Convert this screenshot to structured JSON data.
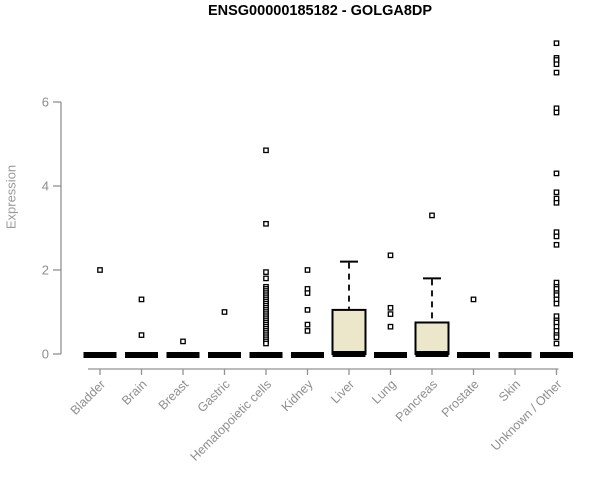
{
  "chart_data": {
    "type": "boxplot",
    "title": "ENSG00000185182 - GOLGA8DP",
    "ylabel": "Expression",
    "xlabel": "",
    "ylim": [
      0,
      7.5
    ],
    "yticks": [
      0,
      2,
      4,
      6
    ],
    "grid": false,
    "legend": "none",
    "categories": [
      "Bladder",
      "Brain",
      "Breast",
      "Gastric",
      "Hematopoietic cells",
      "Kidney",
      "Liver",
      "Lung",
      "Pancreas",
      "Prostate",
      "Skin",
      "Unknown / Other"
    ],
    "boxes": [
      {
        "category": "Bladder",
        "q1": 0,
        "median": 0,
        "q3": 0,
        "whisker_low": 0,
        "whisker_high": 0
      },
      {
        "category": "Brain",
        "q1": 0,
        "median": 0,
        "q3": 0,
        "whisker_low": 0,
        "whisker_high": 0
      },
      {
        "category": "Breast",
        "q1": 0,
        "median": 0,
        "q3": 0,
        "whisker_low": 0,
        "whisker_high": 0
      },
      {
        "category": "Gastric",
        "q1": 0,
        "median": 0,
        "q3": 0,
        "whisker_low": 0,
        "whisker_high": 0
      },
      {
        "category": "Hematopoietic cells",
        "q1": 0,
        "median": 0,
        "q3": 0,
        "whisker_low": 0,
        "whisker_high": 0
      },
      {
        "category": "Kidney",
        "q1": 0,
        "median": 0,
        "q3": 0,
        "whisker_low": 0,
        "whisker_high": 0
      },
      {
        "category": "Liver",
        "q1": 0,
        "median": 0,
        "q3": 1.05,
        "whisker_low": 0,
        "whisker_high": 2.2
      },
      {
        "category": "Lung",
        "q1": 0,
        "median": 0,
        "q3": 0,
        "whisker_low": 0,
        "whisker_high": 0
      },
      {
        "category": "Pancreas",
        "q1": 0,
        "median": 0,
        "q3": 0.75,
        "whisker_low": 0,
        "whisker_high": 1.8
      },
      {
        "category": "Prostate",
        "q1": 0,
        "median": 0,
        "q3": 0,
        "whisker_low": 0,
        "whisker_high": 0
      },
      {
        "category": "Skin",
        "q1": 0,
        "median": 0,
        "q3": 0,
        "whisker_low": 0,
        "whisker_high": 0
      },
      {
        "category": "Unknown / Other",
        "q1": 0,
        "median": 0,
        "q3": 0,
        "whisker_low": 0,
        "whisker_high": 0
      }
    ],
    "outliers": [
      [
        2.0
      ],
      [
        1.3,
        0.45
      ],
      [
        0.3
      ],
      [
        1.0
      ],
      [
        4.85,
        3.1,
        1.95,
        1.8,
        1.6,
        1.55,
        1.5,
        1.45,
        1.4,
        1.35,
        1.3,
        1.25,
        1.2,
        1.15,
        1.1,
        1.05,
        1.0,
        0.95,
        0.9,
        0.85,
        0.8,
        0.75,
        0.7,
        0.65,
        0.6,
        0.55,
        0.5,
        0.45,
        0.4,
        0.35,
        0.3,
        0.25
      ],
      [
        2.0,
        1.55,
        1.45,
        1.05,
        0.7,
        0.55
      ],
      [],
      [
        2.35,
        1.1,
        0.95,
        0.65
      ],
      [
        3.3
      ],
      [
        1.3
      ],
      [],
      [
        7.4,
        7.05,
        7.0,
        6.9,
        6.7,
        5.85,
        5.75,
        4.3,
        3.85,
        3.7,
        3.6,
        2.9,
        2.8,
        2.6,
        1.7,
        1.6,
        1.55,
        1.45,
        1.4,
        1.3,
        1.2,
        0.9,
        0.8,
        0.75,
        0.65,
        0.55,
        0.45,
        0.4,
        0.25
      ]
    ],
    "colors": {
      "box_fill": "#ece7cb",
      "box_stroke": "#000000",
      "median": "#000000",
      "outlier_stroke": "#000000",
      "outlier_fill": "#ffffff",
      "axis": "#929292",
      "tick_label": "#8e8e8e",
      "title": "#000000"
    }
  }
}
